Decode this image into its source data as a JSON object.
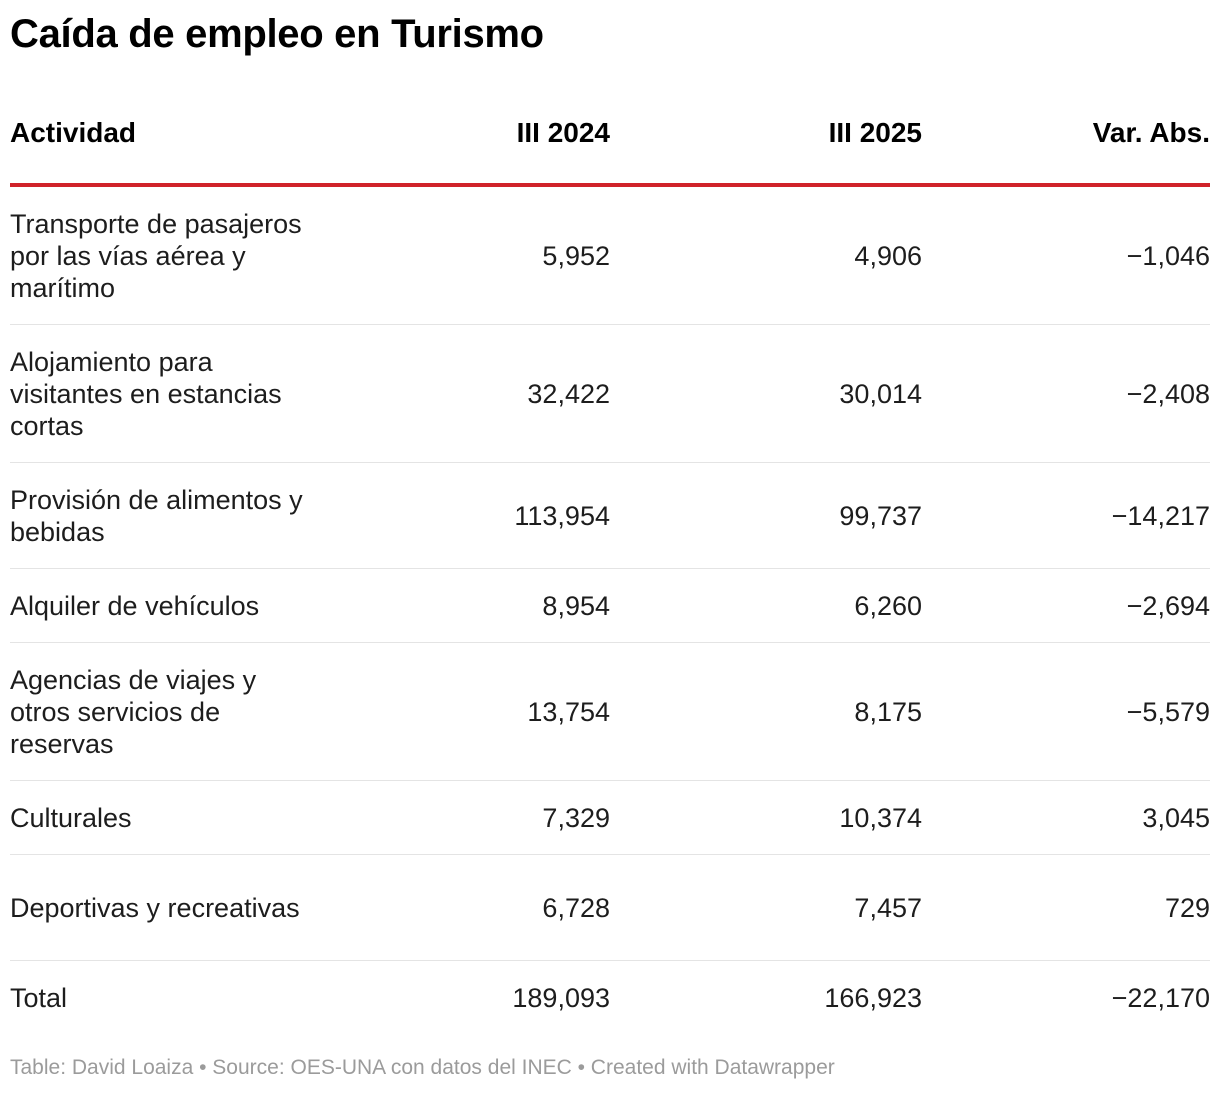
{
  "title": "Caída de empleo en Turismo",
  "footer": "Table: David Loaiza • Source: OES-UNA con datos del INEC • Created with Datawrapper",
  "colors": {
    "header_rule": "#d0222a",
    "row_divider": "#e4e4e4",
    "footer_text": "#9b9b9b"
  },
  "chart_data": {
    "type": "table",
    "columns": [
      "Actividad",
      "III 2024",
      "III 2025",
      "Var. Abs."
    ],
    "rows": [
      {
        "actividad": "Transporte de pasajeros por las vías aérea y marítimo",
        "iii_2024": "5,952",
        "iii_2025": "4,906",
        "var_abs": "−1,046"
      },
      {
        "actividad": "Alojamiento para visitantes en estancias cortas",
        "iii_2024": "32,422",
        "iii_2025": "30,014",
        "var_abs": "−2,408"
      },
      {
        "actividad": "Provisión de alimentos y bebidas",
        "iii_2024": "113,954",
        "iii_2025": "99,737",
        "var_abs": "−14,217"
      },
      {
        "actividad": "Alquiler de vehículos",
        "iii_2024": "8,954",
        "iii_2025": "6,260",
        "var_abs": "−2,694"
      },
      {
        "actividad": "Agencias de viajes y otros servicios de reservas",
        "iii_2024": "13,754",
        "iii_2025": "8,175",
        "var_abs": "−5,579"
      },
      {
        "actividad": "Culturales",
        "iii_2024": "7,329",
        "iii_2025": "10,374",
        "var_abs": "3,045"
      },
      {
        "actividad": "Deportivas y recreativas",
        "iii_2024": "6,728",
        "iii_2025": "7,457",
        "var_abs": "729"
      },
      {
        "actividad": "Total",
        "iii_2024": "189,093",
        "iii_2025": "166,923",
        "var_abs": "−22,170"
      }
    ]
  }
}
